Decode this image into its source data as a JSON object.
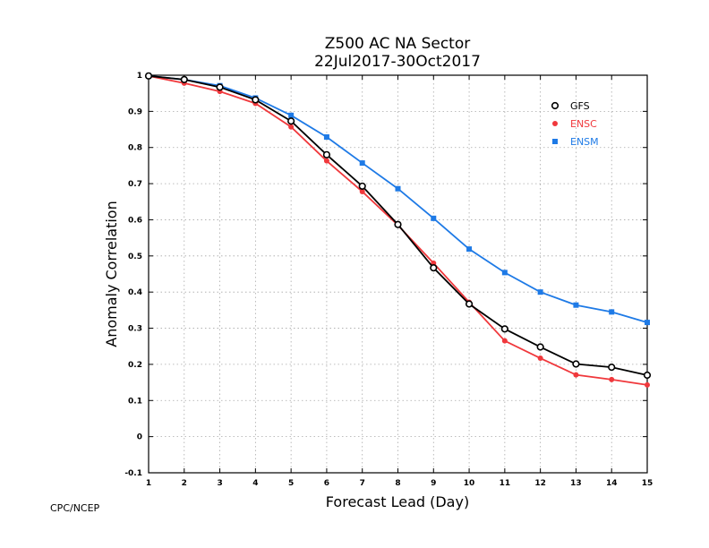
{
  "page": {
    "credit": "CPC/NCEP"
  },
  "chart_data": {
    "type": "line",
    "title": "Z500 AC NA Sector",
    "subtitle": "22Jul2017-30Oct2017",
    "xlabel": "Forecast Lead (Day)",
    "ylabel": "Anomaly Correlation",
    "x": [
      1,
      2,
      3,
      4,
      5,
      6,
      7,
      8,
      9,
      10,
      11,
      12,
      13,
      14,
      15
    ],
    "xlim": [
      1,
      15
    ],
    "ylim": [
      -0.1,
      1
    ],
    "xticks": [
      "1",
      "2",
      "3",
      "4",
      "5",
      "6",
      "7",
      "8",
      "9",
      "10",
      "11",
      "12",
      "13",
      "14",
      "15"
    ],
    "yticks": [
      "-0.1",
      "0",
      "0.1",
      "0.2",
      "0.3",
      "0.4",
      "0.5",
      "0.6",
      "0.7",
      "0.8",
      "0.9",
      "1"
    ],
    "grid": true,
    "legend_position": "top-right",
    "series": [
      {
        "name": "GFS",
        "color": "#000000",
        "marker": "open-circle",
        "values": [
          0.998,
          0.988,
          0.967,
          0.932,
          0.873,
          0.78,
          0.693,
          0.587,
          0.467,
          0.367,
          0.298,
          0.248,
          0.201,
          0.192,
          0.17
        ]
      },
      {
        "name": "ENSC",
        "color": "#f0383c",
        "marker": "filled-circle",
        "values": [
          0.998,
          0.978,
          0.955,
          0.922,
          0.857,
          0.763,
          0.678,
          0.585,
          0.48,
          0.372,
          0.265,
          0.217,
          0.171,
          0.158,
          0.143
        ]
      },
      {
        "name": "ENSM",
        "color": "#1e7ae6",
        "marker": "filled-square",
        "values": [
          0.998,
          0.988,
          0.971,
          0.937,
          0.889,
          0.829,
          0.757,
          0.686,
          0.604,
          0.519,
          0.454,
          0.4,
          0.364,
          0.345,
          0.316
        ]
      }
    ]
  }
}
